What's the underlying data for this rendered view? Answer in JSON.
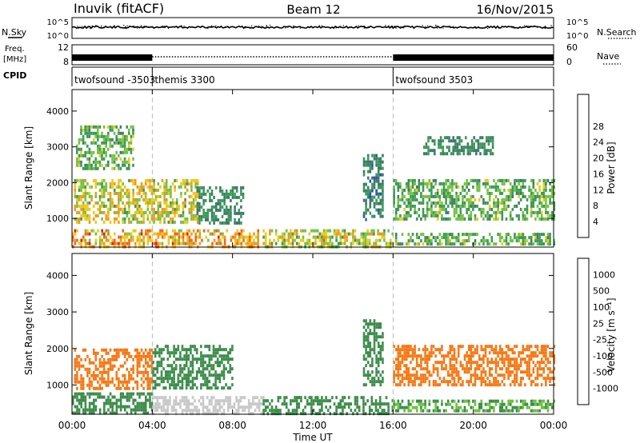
{
  "header": {
    "station": "Inuvik (fitACF)",
    "beam": "Beam 12",
    "date": "16/Nov/2015"
  },
  "top_panels": {
    "nsky_label": "N.Sky",
    "nsearch_label": "N.Search",
    "nsky_ticks": [
      "10^5",
      "10^0"
    ],
    "freq_label_line1": "Freq.",
    "freq_label_line2": "[MHz]",
    "freq_ticks": [
      "12",
      "8"
    ],
    "nave_label": "Nave",
    "nave_ticks": [
      "60",
      "0"
    ],
    "cpid_label": "CPID"
  },
  "cpid_segments": [
    {
      "label": "twofsound -3503",
      "start_hour": 0
    },
    {
      "label": "themis 3300",
      "start_hour": 4
    },
    {
      "label": "twofsound 3503",
      "start_hour": 16
    }
  ],
  "x_axis": {
    "label": "Time UT",
    "ticks": [
      "00:00",
      "04:00",
      "08:00",
      "12:00",
      "16:00",
      "20:00",
      "00:00"
    ],
    "tick_hours": [
      0,
      4,
      8,
      12,
      16,
      20,
      24
    ],
    "range_hours": [
      0,
      24
    ]
  },
  "chart_data": [
    {
      "type": "heatmap",
      "parameter": "power",
      "ylabel": "Slant Range [km]",
      "yticks": [
        "1000",
        "2000",
        "3000",
        "4000"
      ],
      "ylim": [
        200,
        4600
      ],
      "colorbar_label": "Power [dB]",
      "colorbar_ticks": [
        "4",
        "8",
        "12",
        "16",
        "20",
        "24",
        "28"
      ],
      "colorbar_colors": [
        "#1414e6",
        "#2b4fb0",
        "#3d7a6a",
        "#3c9a55",
        "#74c241",
        "#f0c814",
        "#f5961e",
        "#f56414",
        "#e61e14"
      ],
      "echo_regions": [
        {
          "t0": 0.0,
          "t1": 9.3,
          "r0": 250,
          "r1": 700,
          "level": 25
        },
        {
          "t0": 0.1,
          "t1": 6.3,
          "r0": 900,
          "r1": 2100,
          "level": 21
        },
        {
          "t0": 0.2,
          "t1": 3.0,
          "r0": 2400,
          "r1": 3600,
          "level": 16
        },
        {
          "t0": 6.2,
          "t1": 8.5,
          "r0": 850,
          "r1": 1900,
          "level": 12
        },
        {
          "t0": 9.5,
          "t1": 16.0,
          "r0": 250,
          "r1": 700,
          "level": 20
        },
        {
          "t0": 14.5,
          "t1": 15.5,
          "r0": 1000,
          "r1": 2800,
          "level": 11
        },
        {
          "t0": 16.0,
          "t1": 24.0,
          "r0": 250,
          "r1": 600,
          "level": 16
        },
        {
          "t0": 16.0,
          "t1": 24.0,
          "r0": 1000,
          "r1": 2100,
          "level": 16
        },
        {
          "t0": 17.5,
          "t1": 21.0,
          "r0": 2800,
          "r1": 3300,
          "level": 12
        }
      ]
    },
    {
      "type": "heatmap",
      "parameter": "velocity",
      "ylabel": "Slant Range [km]",
      "yticks": [
        "1000",
        "2000",
        "3000",
        "4000"
      ],
      "ylim": [
        200,
        4600
      ],
      "colorbar_label": "Velocity [m s⁻¹]",
      "colorbar_ticks": [
        "1000",
        "500",
        "100",
        "25",
        "-25",
        "-100",
        "-500",
        "-1000"
      ],
      "colorbar_colors": [
        "#1e3ca0",
        "#2d6a6e",
        "#3c8c4a",
        "#6cc23c",
        "#c8c8c8",
        "#f5a01e",
        "#f57814",
        "#f5501e",
        "#e61414"
      ],
      "echo_regions": [
        {
          "t0": 0.0,
          "t1": 4.0,
          "r0": 250,
          "r1": 800,
          "level": 300
        },
        {
          "t0": 4.0,
          "t1": 9.5,
          "r0": 250,
          "r1": 700,
          "level": 0
        },
        {
          "t0": 0.1,
          "t1": 4.0,
          "r0": 900,
          "r1": 2000,
          "level": -200
        },
        {
          "t0": 4.0,
          "t1": 8.0,
          "r0": 900,
          "r1": 2100,
          "level": 200
        },
        {
          "t0": 9.5,
          "t1": 16.0,
          "r0": 250,
          "r1": 700,
          "level": 150
        },
        {
          "t0": 14.5,
          "t1": 15.5,
          "r0": 1000,
          "r1": 2800,
          "level": 200
        },
        {
          "t0": 16.0,
          "t1": 24.0,
          "r0": 1000,
          "r1": 2100,
          "level": -200
        },
        {
          "t0": 16.0,
          "t1": 24.0,
          "r0": 250,
          "r1": 600,
          "level": 100
        }
      ]
    }
  ]
}
